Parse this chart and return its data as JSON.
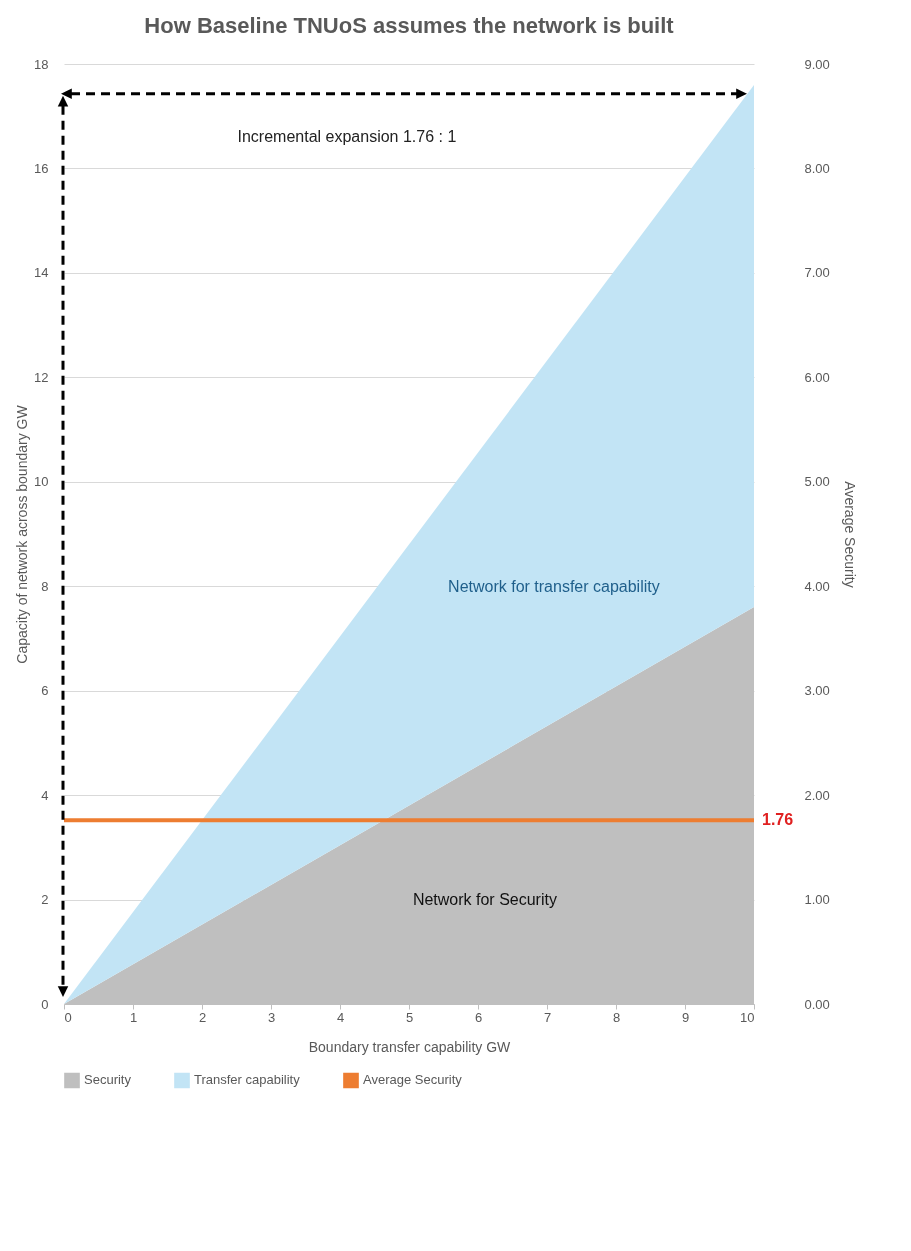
{
  "chart_data": {
    "type": "area",
    "title": "How Baseline TNUoS assumes the network is built",
    "xlabel": "Boundary transfer capability GW",
    "ylabel": "Capacity of network across boundary GW",
    "y2label": "Average Security",
    "x": [
      0,
      10
    ],
    "stacked": true,
    "series": [
      {
        "name": "Security",
        "color": "#bfbfbf",
        "values": [
          0,
          7.6
        ]
      },
      {
        "name": "Transfer capability",
        "color": "#c2e4f5",
        "values": [
          0,
          10
        ]
      },
      {
        "name": "Average Security",
        "type": "line",
        "axis": "y2",
        "color": "#ed7d31",
        "values": [
          1.76,
          1.76
        ],
        "value_labels": [
          null,
          "1.76"
        ]
      }
    ],
    "xlim": [
      0,
      10
    ],
    "xticks": [
      0,
      1,
      2,
      3,
      4,
      5,
      6,
      7,
      8,
      9,
      10
    ],
    "ylim": [
      0,
      18
    ],
    "yticks": [
      0,
      2,
      4,
      6,
      8,
      10,
      12,
      14,
      16,
      18
    ],
    "y2lim": [
      0,
      9
    ],
    "y2ticks": [
      {
        "value": 0,
        "label": "0.00"
      },
      {
        "value": 1,
        "label": "1.00"
      },
      {
        "value": 2,
        "label": "2.00"
      },
      {
        "value": 3,
        "label": "3.00"
      },
      {
        "value": 4,
        "label": "4.00"
      },
      {
        "value": 5,
        "label": "5.00"
      },
      {
        "value": 6,
        "label": "6.00"
      },
      {
        "value": 7,
        "label": "7.00"
      },
      {
        "value": 8,
        "label": "8.00"
      },
      {
        "value": 9,
        "label": "9.00"
      }
    ],
    "annotations": [
      "Incremental expansion 1.76 : 1",
      "Network for transfer capability",
      "Network for Security"
    ],
    "grid": "y",
    "legend": "bottom"
  }
}
